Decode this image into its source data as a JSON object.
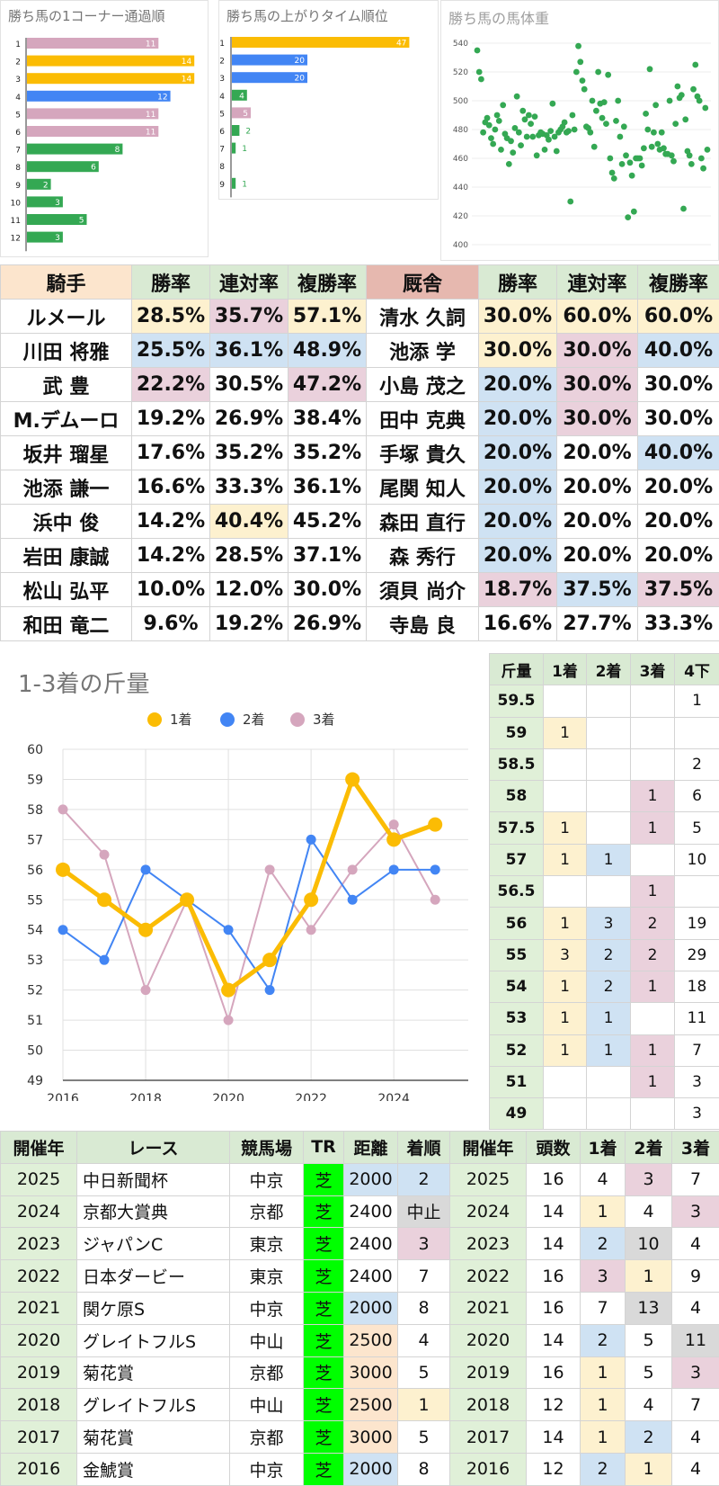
{
  "corner": {
    "title": "勝ち馬の1コーナー通過順",
    "categories": [
      "1",
      "2",
      "3",
      "4",
      "5",
      "6",
      "7",
      "8",
      "9",
      "10",
      "11",
      "12"
    ],
    "values": [
      11,
      14,
      14,
      12,
      11,
      11,
      8,
      6,
      2,
      3,
      5,
      3
    ],
    "colors": [
      "#d5a6bd",
      "#fbbc04",
      "#fbbc04",
      "#4285f4",
      "#d5a6bd",
      "#d5a6bd",
      "#34a853",
      "#34a853",
      "#34a853",
      "#34a853",
      "#34a853",
      "#34a853"
    ]
  },
  "agari": {
    "title": "勝ち馬の上がりタイム順位",
    "categories": [
      "1",
      "2",
      "3",
      "4",
      "5",
      "6",
      "7",
      "8",
      "9"
    ],
    "values": [
      47,
      20,
      20,
      4,
      5,
      2,
      1,
      null,
      1
    ],
    "colors": [
      "#fbbc04",
      "#4285f4",
      "#4285f4",
      "#34a853",
      "#d5a6bd",
      "#34a853",
      "#34a853",
      "#34a853",
      "#34a853"
    ]
  },
  "weight": {
    "title": "勝ち馬の馬体重",
    "yticks": [
      "540",
      "520",
      "500",
      "480",
      "460",
      "440",
      "420",
      "400"
    ],
    "ylim": [
      400,
      540
    ],
    "color": "#34a853",
    "y": [
      535,
      520,
      515,
      478,
      485,
      488,
      483,
      474,
      470,
      480,
      490,
      486,
      466,
      497,
      477,
      474,
      456,
      472,
      464,
      481,
      503,
      478,
      469,
      493,
      487,
      475,
      490,
      484,
      475,
      489,
      462,
      476,
      478,
      477,
      466,
      476,
      473,
      479,
      498,
      475,
      465,
      478,
      480,
      482,
      485,
      478,
      479,
      430,
      490,
      480,
      520,
      538,
      527,
      514,
      508,
      482,
      481,
      478,
      500,
      468,
      493,
      520,
      498,
      488,
      499,
      484,
      518,
      460,
      450,
      446,
      486,
      500,
      475,
      456,
      482,
      462,
      419,
      457,
      448,
      423,
      460,
      460,
      460,
      455,
      467,
      491,
      480,
      522,
      468,
      478,
      497,
      470,
      466,
      478,
      467,
      463,
      463,
      500,
      462,
      458,
      484,
      510,
      502,
      504,
      425,
      487,
      465,
      462,
      456,
      508,
      525,
      503,
      500,
      460,
      453,
      495,
      466
    ]
  },
  "stats": {
    "headers": [
      "騎手",
      "勝率",
      "連対率",
      "複勝率",
      "厩舎",
      "勝率",
      "連対率",
      "複勝率"
    ],
    "rows": [
      [
        "ルメール",
        "28.5%",
        "35.7%",
        "57.1%",
        "清水 久詞",
        "30.0%",
        "60.0%",
        "60.0%"
      ],
      [
        "川田 将雅",
        "25.5%",
        "36.1%",
        "48.9%",
        "池添 学",
        "30.0%",
        "30.0%",
        "40.0%"
      ],
      [
        "武 豊",
        "22.2%",
        "30.5%",
        "47.2%",
        "小島 茂之",
        "20.0%",
        "30.0%",
        "30.0%"
      ],
      [
        "M.デムーロ",
        "19.2%",
        "26.9%",
        "38.4%",
        "田中 克典",
        "20.0%",
        "30.0%",
        "30.0%"
      ],
      [
        "坂井 瑠星",
        "17.6%",
        "35.2%",
        "35.2%",
        "手塚 貴久",
        "20.0%",
        "20.0%",
        "40.0%"
      ],
      [
        "池添 謙一",
        "16.6%",
        "33.3%",
        "36.1%",
        "尾関 知人",
        "20.0%",
        "20.0%",
        "20.0%"
      ],
      [
        "浜中 俊",
        "14.2%",
        "40.4%",
        "45.2%",
        "森田 直行",
        "20.0%",
        "20.0%",
        "20.0%"
      ],
      [
        "岩田 康誠",
        "14.2%",
        "28.5%",
        "37.1%",
        "森 秀行",
        "20.0%",
        "20.0%",
        "20.0%"
      ],
      [
        "松山 弘平",
        "10.0%",
        "12.0%",
        "30.0%",
        "須貝 尚介",
        "18.7%",
        "37.5%",
        "37.5%"
      ],
      [
        "和田 竜二",
        "9.6%",
        "19.2%",
        "26.9%",
        "寺島 良",
        "16.6%",
        "27.7%",
        "33.3%"
      ]
    ],
    "cell_colors": [
      [
        "",
        "y",
        "p",
        "y",
        "",
        "y",
        "y",
        "y"
      ],
      [
        "",
        "b",
        "b",
        "b",
        "",
        "y",
        "p",
        "b"
      ],
      [
        "",
        "p",
        "",
        "p",
        "",
        "b",
        "p",
        ""
      ],
      [
        "",
        "",
        "",
        "",
        "",
        "b",
        "p",
        ""
      ],
      [
        "",
        "",
        "",
        "",
        "",
        "b",
        "",
        "b"
      ],
      [
        "",
        "",
        "",
        "",
        "",
        "b",
        "",
        ""
      ],
      [
        "",
        "",
        "y",
        "",
        "",
        "b",
        "",
        ""
      ],
      [
        "",
        "",
        "",
        "",
        "",
        "b",
        "",
        ""
      ],
      [
        "",
        "",
        "",
        "",
        "",
        "p",
        "b",
        "p"
      ],
      [
        "",
        "",
        "",
        "",
        "",
        "",
        "",
        ""
      ]
    ]
  },
  "kinryo_chart": {
    "title": "1-3着の斤量",
    "legend": [
      "1着",
      "2着",
      "3着"
    ]
  },
  "chart_data": {
    "type": "line",
    "title": "1-3着の斤量",
    "x": [
      2016,
      2017,
      2018,
      2019,
      2020,
      2021,
      2022,
      2023,
      2024,
      2025
    ],
    "xticks": [
      "2016",
      "2018",
      "2020",
      "2022",
      "2024"
    ],
    "yticks": [
      "60",
      "59",
      "58",
      "57",
      "56",
      "55",
      "54",
      "53",
      "52",
      "51",
      "50",
      "49"
    ],
    "ylim": [
      49,
      60
    ],
    "xlim": [
      2016,
      2025.8
    ],
    "series": [
      {
        "name": "1着",
        "color": "#fbbc04",
        "values": [
          56,
          55,
          54,
          55,
          52,
          53,
          55,
          59,
          57,
          57.5
        ]
      },
      {
        "name": "2着",
        "color": "#4285f4",
        "values": [
          54,
          53,
          56,
          55,
          54,
          52,
          57,
          55,
          56,
          56
        ]
      },
      {
        "name": "3着",
        "color": "#d5a6bd",
        "values": [
          58,
          56.5,
          52,
          55,
          51,
          56,
          54,
          56,
          57.5,
          55
        ]
      }
    ]
  },
  "weight_table": {
    "headers": [
      "斤量",
      "1着",
      "2着",
      "3着",
      "4下"
    ],
    "rows": [
      [
        "59.5",
        "",
        "",
        "",
        "1"
      ],
      [
        "59",
        "1",
        "",
        "",
        ""
      ],
      [
        "58.5",
        "",
        "",
        "",
        "2"
      ],
      [
        "58",
        "",
        "",
        "1",
        "6"
      ],
      [
        "57.5",
        "1",
        "",
        "1",
        "5"
      ],
      [
        "57",
        "1",
        "1",
        "",
        "10"
      ],
      [
        "56.5",
        "",
        "",
        "1",
        ""
      ],
      [
        "56",
        "1",
        "3",
        "2",
        "19"
      ],
      [
        "55",
        "3",
        "2",
        "2",
        "29"
      ],
      [
        "54",
        "1",
        "2",
        "1",
        "18"
      ],
      [
        "53",
        "1",
        "1",
        "",
        "11"
      ],
      [
        "52",
        "1",
        "1",
        "1",
        "7"
      ],
      [
        "51",
        "",
        "",
        "1",
        "3"
      ],
      [
        "49",
        "",
        "",
        "",
        "3"
      ]
    ]
  },
  "races": {
    "headers": [
      "開催年",
      "レース",
      "競馬場",
      "TR",
      "距離",
      "着順",
      "開催年",
      "頭数",
      "1着",
      "2着",
      "3着"
    ],
    "rows": [
      [
        "2025",
        "中日新聞杯",
        "中京",
        "芝",
        "2000",
        "2",
        "2025",
        "16",
        "4",
        "3",
        "7"
      ],
      [
        "2024",
        "京都大賞典",
        "京都",
        "芝",
        "2400",
        "中止",
        "2024",
        "14",
        "1",
        "4",
        "3"
      ],
      [
        "2023",
        "ジャパンC",
        "東京",
        "芝",
        "2400",
        "3",
        "2023",
        "14",
        "2",
        "10",
        "4"
      ],
      [
        "2022",
        "日本ダービー",
        "東京",
        "芝",
        "2400",
        "7",
        "2022",
        "16",
        "3",
        "1",
        "9"
      ],
      [
        "2021",
        "関ケ原S",
        "中京",
        "芝",
        "2000",
        "8",
        "2021",
        "16",
        "7",
        "13",
        "4"
      ],
      [
        "2020",
        "グレイトフルS",
        "中山",
        "芝",
        "2500",
        "4",
        "2020",
        "14",
        "2",
        "5",
        "11"
      ],
      [
        "2019",
        "菊花賞",
        "京都",
        "芝",
        "3000",
        "5",
        "2019",
        "16",
        "1",
        "5",
        "3"
      ],
      [
        "2018",
        "グレイトフルS",
        "中山",
        "芝",
        "2500",
        "1",
        "2018",
        "12",
        "1",
        "4",
        "7"
      ],
      [
        "2017",
        "菊花賞",
        "京都",
        "芝",
        "3000",
        "5",
        "2017",
        "14",
        "1",
        "2",
        "4"
      ],
      [
        "2016",
        "金鯱賞",
        "中京",
        "芝",
        "2000",
        "8",
        "2016",
        "12",
        "2",
        "1",
        "4"
      ]
    ],
    "cell_colors": [
      [
        "",
        "",
        "",
        "s",
        "b",
        "b",
        "",
        "",
        "",
        "p",
        ""
      ],
      [
        "",
        "",
        "",
        "s",
        "",
        "g",
        "",
        "",
        "y",
        "",
        "p"
      ],
      [
        "",
        "",
        "",
        "s",
        "",
        "p",
        "",
        "",
        "b",
        "g",
        ""
      ],
      [
        "",
        "",
        "",
        "s",
        "",
        "",
        "",
        "",
        "p",
        "y",
        ""
      ],
      [
        "",
        "",
        "",
        "s",
        "b",
        "",
        "",
        "",
        "",
        "g",
        ""
      ],
      [
        "",
        "",
        "",
        "s",
        "o",
        "",
        "",
        "",
        "b",
        "",
        "g"
      ],
      [
        "",
        "",
        "",
        "s",
        "o",
        "",
        "",
        "",
        "y",
        "",
        "p"
      ],
      [
        "",
        "",
        "",
        "s",
        "o",
        "y",
        "",
        "",
        "y",
        "",
        ""
      ],
      [
        "",
        "",
        "",
        "s",
        "o",
        "",
        "",
        "",
        "y",
        "b",
        ""
      ],
      [
        "",
        "",
        "",
        "s",
        "b",
        "",
        "",
        "",
        "b",
        "y",
        ""
      ]
    ]
  }
}
